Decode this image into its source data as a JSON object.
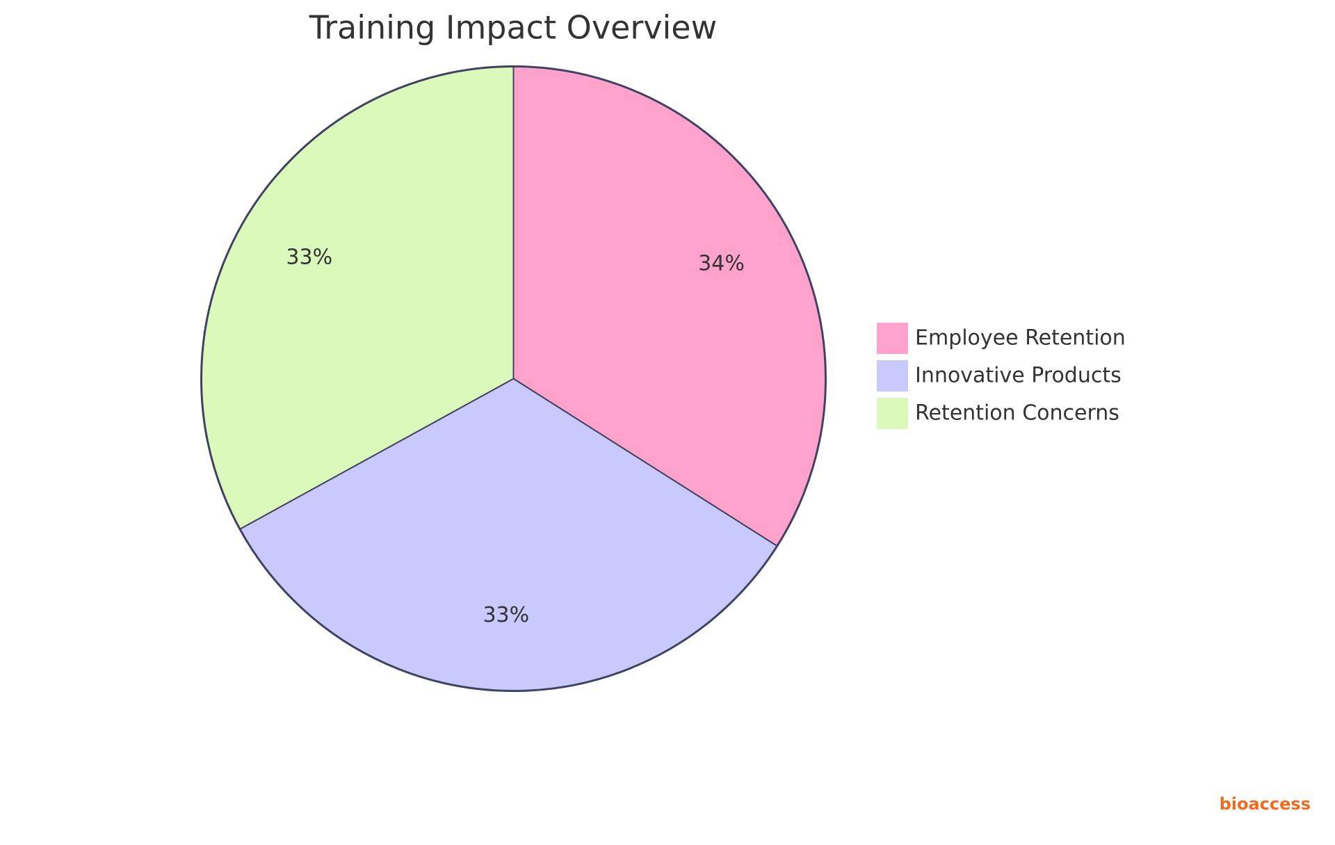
{
  "chart_data": {
    "type": "pie",
    "title": "Training Impact Overview",
    "categories": [
      "Employee Retention",
      "Innovative Products",
      "Retention Concerns"
    ],
    "values": [
      34,
      33,
      33
    ],
    "value_labels": [
      "34%",
      "33%",
      "33%"
    ],
    "colors": [
      "#ffa3cd",
      "#c9c9fd",
      "#daf9ba"
    ],
    "legend": "right"
  },
  "watermark": "bioaccess"
}
